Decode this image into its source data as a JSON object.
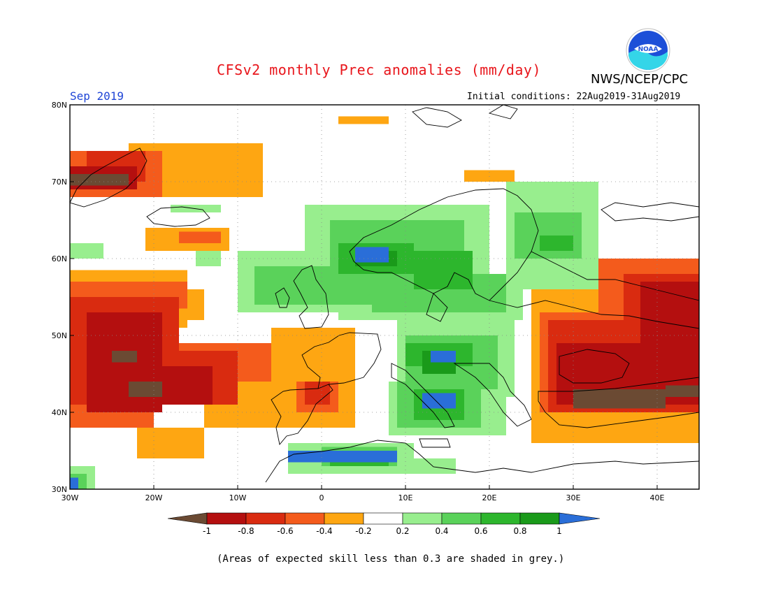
{
  "title": "CFSv2 monthly Prec anomalies (mm/day)",
  "agency": "NWS/NCEP/CPC",
  "logo_text": "NOAA",
  "month_label": "Sep 2019",
  "initial_conditions": "Initial conditions: 22Aug2019-31Aug2019",
  "footnote": "(Areas of expected skill less than 0.3 are shaded in grey.)",
  "map": {
    "lon_range": [
      -30,
      45
    ],
    "lat_range": [
      30,
      80
    ],
    "lon_ticks": [
      {
        "lon": -30,
        "label": "30W"
      },
      {
        "lon": -20,
        "label": "20W"
      },
      {
        "lon": -10,
        "label": "10W"
      },
      {
        "lon": 0,
        "label": "0"
      },
      {
        "lon": 10,
        "label": "10E"
      },
      {
        "lon": 20,
        "label": "20E"
      },
      {
        "lon": 30,
        "label": "30E"
      },
      {
        "lon": 40,
        "label": "40E"
      }
    ],
    "lat_ticks": [
      {
        "lat": 80,
        "label": "80N"
      },
      {
        "lat": 70,
        "label": "70N"
      },
      {
        "lat": 60,
        "label": "60N"
      },
      {
        "lat": 50,
        "label": "50N"
      },
      {
        "lat": 40,
        "label": "40N"
      },
      {
        "lat": 30,
        "label": "30N"
      }
    ],
    "colors": {
      "lt_-1": "#6b4a33",
      "-1_-0.8": "#b40f0f",
      "-0.8_-0.6": "#d92b10",
      "-0.6_-0.4": "#f45b1c",
      "-0.4_-0.2": "#fea612",
      "0.2_0.4": "#98ee8e",
      "0.4_0.6": "#5ad25a",
      "0.6_0.8": "#2db62d",
      "0.8_1": "#1a9a1a",
      "gt_1": "#2a6ed8"
    },
    "anomaly_regions": [
      {
        "class": "-0.4_-0.2",
        "lon": [
          -30,
          -16
        ],
        "lat": [
          51,
          58.5
        ]
      },
      {
        "class": "-0.4_-0.2",
        "lon": [
          -16,
          -14
        ],
        "lat": [
          52,
          56
        ]
      },
      {
        "class": "-0.4_-0.2",
        "lon": [
          -22,
          -14
        ],
        "lat": [
          34,
          38
        ]
      },
      {
        "class": "-0.4_-0.2",
        "lon": [
          -14,
          4
        ],
        "lat": [
          38,
          46
        ]
      },
      {
        "class": "-0.4_-0.2",
        "lon": [
          -6,
          4
        ],
        "lat": [
          46,
          51
        ]
      },
      {
        "class": "-0.4_-0.2",
        "lon": [
          -23,
          -7
        ],
        "lat": [
          68,
          75
        ]
      },
      {
        "class": "-0.4_-0.2",
        "lon": [
          -21,
          -11
        ],
        "lat": [
          61,
          64
        ]
      },
      {
        "class": "-0.4_-0.2",
        "lon": [
          2,
          8
        ],
        "lat": [
          77.5,
          78.5
        ]
      },
      {
        "class": "-0.4_-0.2",
        "lon": [
          17,
          23
        ],
        "lat": [
          70,
          71.5
        ]
      },
      {
        "class": "-0.4_-0.2",
        "lon": [
          25,
          45
        ],
        "lat": [
          36,
          57
        ]
      },
      {
        "class": "-0.4_-0.2",
        "lon": [
          33,
          37
        ],
        "lat": [
          37,
          39
        ]
      },
      {
        "class": "-0.6_-0.4",
        "lon": [
          -30,
          -16
        ],
        "lat": [
          53.5,
          57
        ]
      },
      {
        "class": "-0.6_-0.4",
        "lon": [
          -30,
          -20
        ],
        "lat": [
          38,
          52
        ]
      },
      {
        "class": "-0.6_-0.4",
        "lon": [
          -20,
          -6
        ],
        "lat": [
          44,
          49
        ]
      },
      {
        "class": "-0.6_-0.4",
        "lon": [
          -3,
          2
        ],
        "lat": [
          40,
          44
        ]
      },
      {
        "class": "-0.6_-0.4",
        "lon": [
          -30,
          -19
        ],
        "lat": [
          68,
          74
        ]
      },
      {
        "class": "-0.6_-0.4",
        "lon": [
          -17,
          -12
        ],
        "lat": [
          62,
          63.5
        ]
      },
      {
        "class": "-0.6_-0.4",
        "lon": [
          26,
          45
        ],
        "lat": [
          40,
          53
        ]
      },
      {
        "class": "-0.6_-0.4",
        "lon": [
          33,
          45
        ],
        "lat": [
          52,
          60
        ]
      },
      {
        "class": "-0.8_-0.6",
        "lon": [
          -30,
          -17
        ],
        "lat": [
          41,
          55
        ]
      },
      {
        "class": "-0.8_-0.6",
        "lon": [
          -17,
          -10
        ],
        "lat": [
          41,
          48
        ]
      },
      {
        "class": "-0.8_-0.6",
        "lon": [
          -2,
          1
        ],
        "lat": [
          41,
          44
        ]
      },
      {
        "class": "-0.8_-0.6",
        "lon": [
          -28,
          -21
        ],
        "lat": [
          70,
          74
        ]
      },
      {
        "class": "-0.8_-0.6",
        "lon": [
          27,
          45
        ],
        "lat": [
          40,
          52
        ]
      },
      {
        "class": "-0.8_-0.6",
        "lon": [
          36,
          45
        ],
        "lat": [
          52,
          58
        ]
      },
      {
        "class": "-1_-0.8",
        "lon": [
          -28,
          -19
        ],
        "lat": [
          40,
          53
        ]
      },
      {
        "class": "-1_-0.8",
        "lon": [
          -19,
          -13
        ],
        "lat": [
          41,
          46
        ]
      },
      {
        "class": "-1_-0.8",
        "lon": [
          28,
          45
        ],
        "lat": [
          41,
          49
        ]
      },
      {
        "class": "-1_-0.8",
        "lon": [
          38,
          45
        ],
        "lat": [
          49,
          57
        ]
      },
      {
        "class": "-1_-0.8",
        "lon": [
          -30,
          -22
        ],
        "lat": [
          69,
          72
        ]
      },
      {
        "class": "lt_-1",
        "lon": [
          -23,
          -19
        ],
        "lat": [
          42,
          44
        ]
      },
      {
        "class": "lt_-1",
        "lon": [
          -25,
          -22
        ],
        "lat": [
          46.5,
          48
        ]
      },
      {
        "class": "lt_-1",
        "lon": [
          -30,
          -23
        ],
        "lat": [
          69.5,
          71
        ]
      },
      {
        "class": "lt_-1",
        "lon": [
          30,
          41
        ],
        "lat": [
          40.5,
          43
        ]
      },
      {
        "class": "lt_-1",
        "lon": [
          41,
          45
        ],
        "lat": [
          42,
          43.5
        ]
      },
      {
        "class": "0.2_0.4",
        "lon": [
          -30,
          -26
        ],
        "lat": [
          60,
          62
        ]
      },
      {
        "class": "0.2_0.4",
        "lon": [
          -15,
          -12
        ],
        "lat": [
          59,
          61
        ]
      },
      {
        "class": "0.2_0.4",
        "lon": [
          -10,
          6
        ],
        "lat": [
          53,
          61
        ]
      },
      {
        "class": "0.2_0.4",
        "lon": [
          -2,
          20
        ],
        "lat": [
          58,
          67
        ]
      },
      {
        "class": "0.2_0.4",
        "lon": [
          2,
          24
        ],
        "lat": [
          52,
          58
        ]
      },
      {
        "class": "0.2_0.4",
        "lon": [
          22,
          33
        ],
        "lat": [
          56,
          70
        ]
      },
      {
        "class": "0.2_0.4",
        "lon": [
          9,
          23
        ],
        "lat": [
          42,
          53
        ]
      },
      {
        "class": "0.2_0.4",
        "lon": [
          8,
          22
        ],
        "lat": [
          37,
          44
        ]
      },
      {
        "class": "0.2_0.4",
        "lon": [
          -4,
          11
        ],
        "lat": [
          32,
          36
        ]
      },
      {
        "class": "0.2_0.4",
        "lon": [
          11,
          16
        ],
        "lat": [
          32,
          34
        ]
      },
      {
        "class": "0.2_0.4",
        "lon": [
          -30,
          -27
        ],
        "lat": [
          30,
          33
        ]
      },
      {
        "class": "0.2_0.4",
        "lon": [
          -18,
          -12
        ],
        "lat": [
          66,
          67
        ]
      },
      {
        "class": "0.4_0.6",
        "lon": [
          -8,
          6
        ],
        "lat": [
          54,
          59
        ]
      },
      {
        "class": "0.4_0.6",
        "lon": [
          1,
          17
        ],
        "lat": [
          57,
          65
        ]
      },
      {
        "class": "0.4_0.6",
        "lon": [
          6,
          22
        ],
        "lat": [
          53,
          58
        ]
      },
      {
        "class": "0.4_0.6",
        "lon": [
          23,
          31
        ],
        "lat": [
          60,
          66
        ]
      },
      {
        "class": "0.4_0.6",
        "lon": [
          10,
          21
        ],
        "lat": [
          43,
          50
        ]
      },
      {
        "class": "0.4_0.6",
        "lon": [
          9,
          19
        ],
        "lat": [
          38,
          44
        ]
      },
      {
        "class": "0.4_0.6",
        "lon": [
          0,
          9
        ],
        "lat": [
          33,
          35.5
        ]
      },
      {
        "class": "0.4_0.6",
        "lon": [
          -30,
          -28
        ],
        "lat": [
          30,
          32
        ]
      },
      {
        "class": "0.6_0.8",
        "lon": [
          2,
          11
        ],
        "lat": [
          58,
          62
        ]
      },
      {
        "class": "0.6_0.8",
        "lon": [
          11,
          18
        ],
        "lat": [
          56,
          61
        ]
      },
      {
        "class": "0.6_0.8",
        "lon": [
          26,
          30
        ],
        "lat": [
          61,
          63
        ]
      },
      {
        "class": "0.6_0.8",
        "lon": [
          10,
          18
        ],
        "lat": [
          46,
          49
        ]
      },
      {
        "class": "0.6_0.8",
        "lon": [
          11,
          17
        ],
        "lat": [
          39,
          43
        ]
      },
      {
        "class": "0.6_0.8",
        "lon": [
          1,
          8
        ],
        "lat": [
          33,
          34.5
        ]
      },
      {
        "class": "0.8_1",
        "lon": [
          4,
          9
        ],
        "lat": [
          59,
          61
        ]
      },
      {
        "class": "0.8_1",
        "lon": [
          12,
          16
        ],
        "lat": [
          45,
          48
        ]
      },
      {
        "class": "gt_1",
        "lon": [
          4,
          8
        ],
        "lat": [
          59.5,
          61.5
        ]
      },
      {
        "class": "gt_1",
        "lon": [
          13,
          16
        ],
        "lat": [
          46.5,
          48
        ]
      },
      {
        "class": "gt_1",
        "lon": [
          12,
          16
        ],
        "lat": [
          40.5,
          42.5
        ]
      },
      {
        "class": "gt_1",
        "lon": [
          -4,
          9
        ],
        "lat": [
          33.5,
          35
        ]
      },
      {
        "class": "gt_1",
        "lon": [
          -30,
          -29
        ],
        "lat": [
          30,
          31.5
        ]
      }
    ]
  },
  "legend": {
    "labels": [
      "-1",
      "-0.8",
      "-0.6",
      "-0.4",
      "-0.2",
      "0.2",
      "0.4",
      "0.6",
      "0.8",
      "1"
    ],
    "boxes": [
      "#b40f0f",
      "#d92b10",
      "#f45b1c",
      "#fea612",
      "#ffffff",
      "#98ee8e",
      "#5ad25a",
      "#2db62d",
      "#1a9a1a"
    ],
    "left_arrow": "#6b4a33",
    "right_arrow": "#2a6ed8"
  }
}
